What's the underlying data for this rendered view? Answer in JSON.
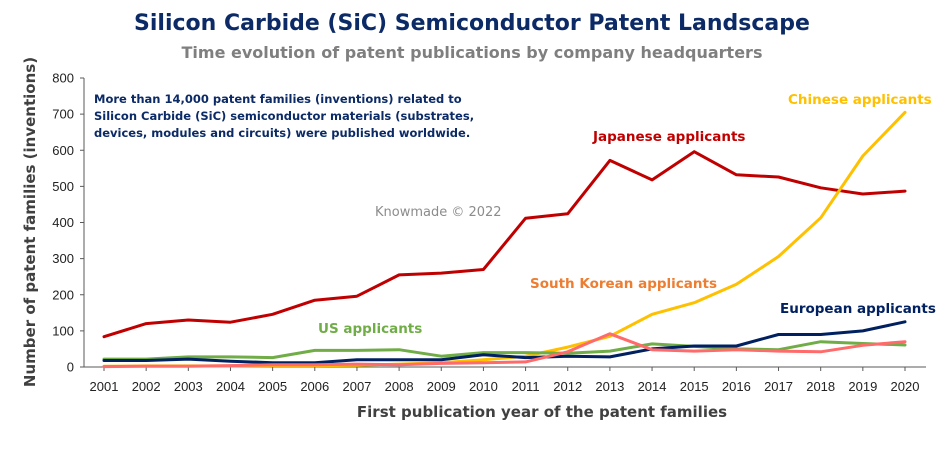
{
  "chart_data": {
    "type": "line",
    "title": "Silicon Carbide (SiC) Semiconductor Patent Landscape",
    "subtitle": "Time evolution of patent publications by company headquarters",
    "xlabel": "First publication year of the patent families",
    "ylabel": "Number of patent families (inventions)",
    "categories": [
      "2001",
      "2002",
      "2003",
      "2004",
      "2005",
      "2006",
      "2007",
      "2008",
      "2009",
      "2010",
      "2011",
      "2012",
      "2013",
      "2014",
      "2015",
      "2016",
      "2017",
      "2018",
      "2019",
      "2020"
    ],
    "ylim": [
      0,
      800
    ],
    "yticks": [
      0,
      100,
      200,
      300,
      400,
      500,
      600,
      700,
      800
    ],
    "grid": false,
    "annotation": "More than 14,000 patent families (inventions) related to Silicon Carbide (SiC) semiconductor materials (substrates, devices, modules and circuits) were published worldwide.",
    "annotation_lines": [
      "More than 14,000 patent families (inventions) related to",
      "Silicon Carbide (SiC) semiconductor materials (substrates,",
      "devices, modules and circuits) were published worldwide."
    ],
    "watermark": "Knowmade © 2022",
    "series": [
      {
        "name": "Japanese applicants",
        "color": "#c00000",
        "values": [
          84,
          120,
          130,
          124,
          146,
          185,
          196,
          255,
          260,
          270,
          412,
          424,
          572,
          518,
          596,
          532,
          526,
          496,
          479,
          487
        ]
      },
      {
        "name": "Chinese applicants",
        "color": "#ffc000",
        "values": [
          2,
          3,
          3,
          3,
          4,
          4,
          5,
          8,
          12,
          20,
          30,
          55,
          85,
          146,
          178,
          229,
          306,
          413,
          584,
          705
        ]
      },
      {
        "name": "US applicants",
        "color": "#70ad47",
        "values": [
          22,
          22,
          28,
          28,
          26,
          46,
          46,
          48,
          30,
          40,
          40,
          38,
          44,
          64,
          57,
          50,
          48,
          70,
          65,
          61
        ]
      },
      {
        "name": "European applicants",
        "color": "#002060",
        "values": [
          18,
          18,
          22,
          16,
          12,
          12,
          20,
          20,
          20,
          34,
          26,
          30,
          28,
          50,
          58,
          58,
          90,
          90,
          100,
          125
        ]
      },
      {
        "name": "South Korean applicants",
        "color": "#ff6a6a",
        "values": [
          1,
          2,
          2,
          4,
          6,
          6,
          8,
          6,
          10,
          12,
          14,
          42,
          92,
          48,
          44,
          48,
          44,
          42,
          60,
          70
        ]
      }
    ]
  }
}
